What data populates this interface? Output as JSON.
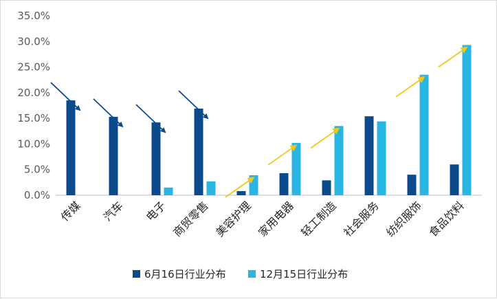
{
  "chart_data": {
    "type": "bar",
    "title": "",
    "xlabel": "",
    "ylabel": "",
    "ylim": [
      0,
      35
    ],
    "yticks": [
      "0.0%",
      "5.0%",
      "10.0%",
      "15.0%",
      "20.0%",
      "25.0%",
      "30.0%",
      "35.0%"
    ],
    "categories": [
      "传媒",
      "汽车",
      "电子",
      "商贸零售",
      "美容护理",
      "家用电器",
      "轻工制造",
      "社会服务",
      "纺织服饰",
      "食品饮料"
    ],
    "series": [
      {
        "name": "6月16日行业分布",
        "color": "#0b4a8b",
        "values": [
          18.5,
          15.3,
          14.2,
          16.9,
          0.8,
          4.3,
          2.9,
          15.4,
          4.0,
          6.0
        ]
      },
      {
        "name": "12月15日行业分布",
        "color": "#29b6e2",
        "values": [
          null,
          null,
          1.5,
          2.7,
          3.9,
          10.2,
          13.5,
          14.4,
          23.5,
          29.3
        ]
      }
    ],
    "legend": "bottom",
    "annotations": [
      {
        "category": "传媒",
        "direction": "down",
        "color": "#0b4a8b"
      },
      {
        "category": "汽车",
        "direction": "down",
        "color": "#0b4a8b"
      },
      {
        "category": "电子",
        "direction": "down",
        "color": "#0b4a8b"
      },
      {
        "category": "商贸零售",
        "direction": "down",
        "color": "#0b4a8b"
      },
      {
        "category": "美容护理",
        "direction": "up",
        "color": "#f5c518"
      },
      {
        "category": "家用电器",
        "direction": "up",
        "color": "#f5c518"
      },
      {
        "category": "轻工制造",
        "direction": "up",
        "color": "#f5c518"
      },
      {
        "category": "纺织服饰",
        "direction": "up",
        "color": "#f5c518"
      },
      {
        "category": "食品饮料",
        "direction": "up",
        "color": "#f5c518"
      }
    ]
  }
}
